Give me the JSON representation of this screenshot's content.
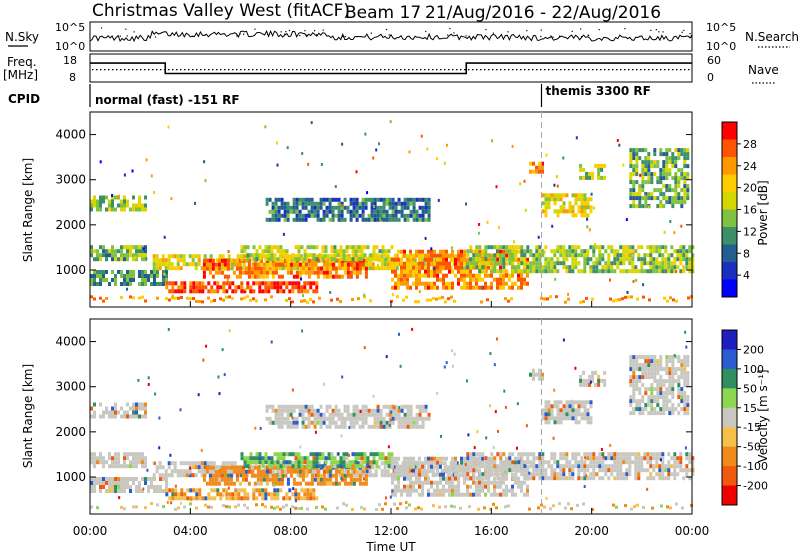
{
  "header": {
    "station": "Christmas Valley West (fitACF)",
    "beam": "Beam 17",
    "date_range": "21/Aug/2016 - 22/Aug/2016"
  },
  "left_labels": {
    "nsky": "N.Sky",
    "freq_line1": "Freq.",
    "freq_line2": "[MHz]",
    "cpid": "CPID"
  },
  "right_labels": {
    "nsearch": "N.Search",
    "nave": "Nave"
  },
  "noise_panel": {
    "y_ticks": [
      "10^5",
      "10^0"
    ],
    "right_ticks": [
      "10^5",
      "10^0"
    ]
  },
  "freq_panel": {
    "left_ticks": [
      "18",
      "8"
    ],
    "right_ticks": [
      "60",
      "0"
    ],
    "freq_steps": [
      {
        "t0": 0,
        "t1": 3,
        "level": 0.65
      },
      {
        "t0": 3,
        "t1": 15,
        "level": 0.25
      },
      {
        "t0": 15,
        "t1": 24,
        "level": 0.65
      }
    ],
    "nave_level": 0.4
  },
  "cpid_panel": {
    "programs": [
      {
        "label": "normal (fast) -151 RF",
        "start_hour": 0
      },
      {
        "label": "themis 3300 RF",
        "start_hour": 18
      }
    ]
  },
  "x_axis": {
    "ticks": [
      "00:00",
      "04:00",
      "08:00",
      "12:00",
      "16:00",
      "20:00",
      "00:00"
    ],
    "tick_hours": [
      0,
      4,
      8,
      12,
      16,
      20,
      24
    ],
    "label": "Time UT"
  },
  "power_panel": {
    "ylabel": "Slant Range [km]",
    "y_ticks": [
      1000,
      2000,
      3000,
      4000
    ],
    "ylim": [
      180,
      4500
    ],
    "colorbar_label": "Power [dB]",
    "colorbar_ticks": [
      "28",
      "24",
      "20",
      "16",
      "12",
      "8",
      "4"
    ],
    "colorbar_colors": [
      "#ff0000",
      "#ff5500",
      "#ff9900",
      "#ffcc00",
      "#d6d600",
      "#7fc241",
      "#3d8f6a",
      "#225f8f",
      "#1a2fbf",
      "#0000ff"
    ]
  },
  "velocity_panel": {
    "ylabel": "Slant Range [km]",
    "y_ticks": [
      1000,
      2000,
      3000,
      4000
    ],
    "ylim": [
      180,
      4500
    ],
    "colorbar_label": "Velocity [m s⁻¹]",
    "colorbar_ticks": [
      "200",
      "100",
      "50",
      "15",
      "-15",
      "-50",
      "-100",
      "-200"
    ],
    "colorbar_colors": [
      "#1f1fbf",
      "#2a5ccf",
      "#2f8f5f",
      "#8fd650",
      "#c8c8c0",
      "#f4c04a",
      "#f08a1a",
      "#f05a10",
      "#ee0000"
    ]
  },
  "chart_data": {
    "type": "heatmap",
    "title": "Christmas Valley West (fitACF) Beam 17 21/Aug/2016 - 22/Aug/2016",
    "xlabel": "Time UT",
    "ylabel": "Slant Range [km]",
    "xlim_hours": [
      0,
      24
    ],
    "ylim": [
      180,
      4500
    ],
    "x_ticks": [
      "00:00",
      "04:00",
      "08:00",
      "12:00",
      "16:00",
      "20:00",
      "00:00"
    ],
    "y_ticks": [
      1000,
      2000,
      3000,
      4000
    ],
    "panels": [
      {
        "name": "Power [dB]",
        "colorbar_range": [
          0,
          30
        ]
      },
      {
        "name": "Velocity [m s⁻¹]",
        "colorbar_range": [
          -200,
          200
        ]
      }
    ],
    "regions": [
      {
        "t0": 0.0,
        "t1": 2.2,
        "r0": 2300,
        "r1": 2650,
        "power": 14,
        "velocity": 0
      },
      {
        "t0": 0.0,
        "t1": 2.2,
        "r0": 1250,
        "r1": 1550,
        "power": 12,
        "velocity": 0
      },
      {
        "t0": 0.0,
        "t1": 3.0,
        "r0": 700,
        "r1": 1000,
        "power": 10,
        "velocity": 0
      },
      {
        "t0": 2.5,
        "t1": 15.0,
        "r0": 1050,
        "r1": 1350,
        "power": 18,
        "velocity": 0
      },
      {
        "t0": 4.5,
        "t1": 11.0,
        "r0": 850,
        "r1": 1250,
        "power": 25,
        "velocity": -40
      },
      {
        "t0": 3.0,
        "t1": 9.0,
        "r0": 500,
        "r1": 750,
        "power": 28,
        "velocity": -30
      },
      {
        "t0": 6.0,
        "t1": 12.0,
        "r0": 1250,
        "r1": 1550,
        "power": 16,
        "velocity": 30
      },
      {
        "t0": 7.0,
        "t1": 13.5,
        "r0": 2100,
        "r1": 2600,
        "power": 8,
        "velocity": 0
      },
      {
        "t0": 12.0,
        "t1": 17.5,
        "r0": 650,
        "r1": 1450,
        "power": 24,
        "velocity": 0
      },
      {
        "t0": 15.0,
        "t1": 24.0,
        "r0": 1000,
        "r1": 1550,
        "power": 14,
        "velocity": 0
      },
      {
        "t0": 17.5,
        "t1": 18.0,
        "r0": 3200,
        "r1": 3400,
        "power": 24,
        "velocity": 0
      },
      {
        "t0": 18.0,
        "t1": 20.0,
        "r0": 2200,
        "r1": 2700,
        "power": 18,
        "velocity": 0
      },
      {
        "t0": 19.5,
        "t1": 20.5,
        "r0": 3050,
        "r1": 3350,
        "power": 16,
        "velocity": 0
      },
      {
        "t0": 21.5,
        "t1": 23.8,
        "r0": 2400,
        "r1": 3700,
        "power": 12,
        "velocity": 0
      }
    ]
  }
}
